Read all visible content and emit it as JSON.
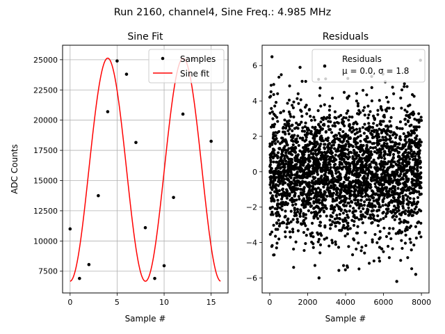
{
  "figure": {
    "suptitle": "Run 2160, channel4, Sine Freq.: 4.985 MHz"
  },
  "chart_data": [
    {
      "type": "scatter+line",
      "title": "Sine Fit",
      "xlabel": "Sample #",
      "ylabel": "ADC Counts",
      "xlim": [
        -0.8,
        16.8
      ],
      "ylim": [
        5700,
        26200
      ],
      "xticks": [
        0,
        5,
        10,
        15
      ],
      "yticks": [
        7500,
        10000,
        12500,
        15000,
        17500,
        20000,
        22500,
        25000
      ],
      "grid": true,
      "legend": {
        "position": "top-right",
        "entries": [
          "Samples",
          "Sine fit"
        ]
      },
      "series": [
        {
          "name": "Samples",
          "kind": "scatter",
          "color": "#000000",
          "x": [
            0,
            1,
            2,
            3,
            4,
            5,
            6,
            7,
            8,
            9,
            10,
            11,
            12,
            13,
            14,
            15
          ],
          "y": [
            11000,
            6900,
            8050,
            13750,
            20700,
            24900,
            23800,
            18150,
            11100,
            6900,
            7950,
            13600,
            20500,
            25000,
            23800,
            18250
          ]
        },
        {
          "name": "Sine fit",
          "kind": "line",
          "color": "#ff0000",
          "model": {
            "amplitude": 9230,
            "offset": 15900,
            "period": 8.024,
            "phase_offset_samples": 0.011,
            "x_range": [
              0,
              16
            ]
          }
        }
      ]
    },
    {
      "type": "scatter",
      "title": "Residuals",
      "xlabel": "Sample #",
      "ylabel": "",
      "xlim": [
        -400,
        8400
      ],
      "ylim": [
        -6.85,
        7.15
      ],
      "xticks": [
        0,
        2000,
        4000,
        6000,
        8000
      ],
      "yticks": [
        -6,
        -4,
        -2,
        0,
        2,
        4,
        6
      ],
      "grid": false,
      "legend": {
        "position": "top-right",
        "entries": [
          "Residuals",
          "μ = 0.0, σ = 1.8"
        ]
      },
      "series": [
        {
          "name": "Residuals",
          "color": "#000000",
          "distribution": {
            "n_points": 8000,
            "x_range": [
              0,
              8000
            ],
            "mean": 0.0,
            "sigma": 1.8
          },
          "notable_points": [
            {
              "x": 120,
              "y": 6.5
            },
            {
              "x": 2900,
              "y": 6.0
            },
            {
              "x": 7950,
              "y": 6.3
            },
            {
              "x": 1600,
              "y": 5.9
            },
            {
              "x": 2600,
              "y": -6.0
            },
            {
              "x": 6700,
              "y": -6.2
            },
            {
              "x": 7700,
              "y": -5.8
            }
          ]
        }
      ]
    }
  ]
}
